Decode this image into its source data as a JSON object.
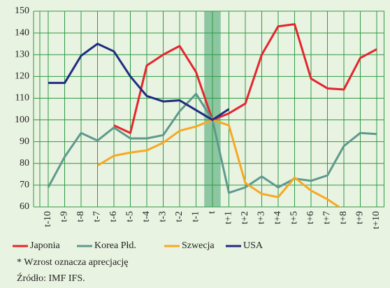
{
  "chart_data": {
    "type": "line",
    "categories": [
      "t-10",
      "t-9",
      "t-8",
      "t-7",
      "t-6",
      "t-5",
      "t-4",
      "t-3",
      "t-2",
      "t-1",
      "t",
      "t+1",
      "t+2",
      "t+3",
      "t+4",
      "t+5",
      "t+6",
      "t+7",
      "t+8",
      "t+9",
      "t+10"
    ],
    "series": [
      {
        "name": "Japonia",
        "color": "#e3262e",
        "values": [
          null,
          null,
          null,
          null,
          97.5,
          94,
          125,
          130,
          134,
          122,
          100,
          103,
          107.5,
          130,
          143,
          144,
          119,
          114.5,
          114,
          128.5,
          132.5
        ]
      },
      {
        "name": "Korea Płd.",
        "color": "#5e9a8c",
        "values": [
          69,
          83,
          94,
          90.5,
          96.5,
          91.5,
          91.5,
          93,
          104,
          112,
          100,
          66.5,
          69,
          74,
          69,
          73,
          72,
          74.5,
          88,
          94,
          93.5
        ]
      },
      {
        "name": "Szwecja",
        "color": "#f7a823",
        "values": [
          null,
          null,
          null,
          79,
          83.5,
          85,
          86,
          89.5,
          95,
          97,
          100,
          97.5,
          71,
          66,
          64.5,
          73.5,
          67.5,
          63.5,
          58.5,
          null,
          null
        ]
      },
      {
        "name": "USA",
        "color": "#1f2c80",
        "values": [
          117,
          117,
          129.5,
          135,
          131.5,
          120,
          111,
          108.5,
          109,
          104.5,
          100,
          105,
          null,
          null,
          null,
          null,
          null,
          null,
          null,
          null,
          null
        ]
      }
    ],
    "ylim": [
      60,
      150
    ],
    "yticks": [
      60,
      70,
      80,
      90,
      100,
      110,
      120,
      130,
      140,
      150
    ],
    "grid": true,
    "highlight": "t",
    "notes": [
      "* Wzrost oznacza aprecjację",
      "Źródło: IMF IFS."
    ]
  }
}
